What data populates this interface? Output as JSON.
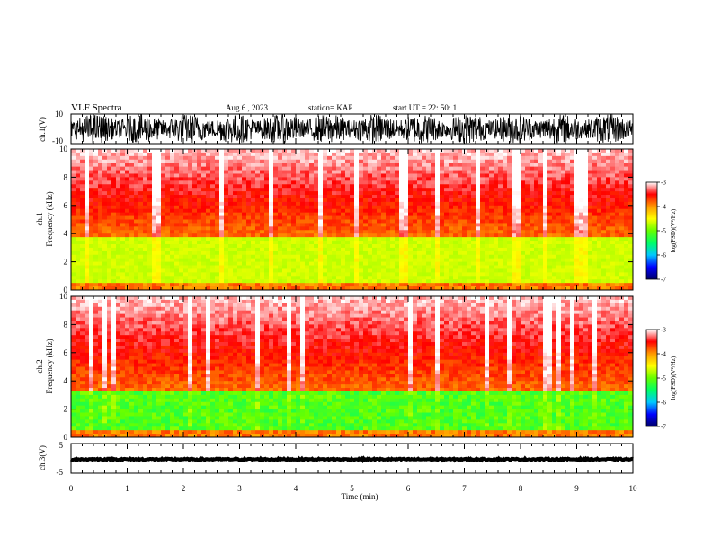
{
  "header": {
    "title": "VLF  Spectra",
    "date": "Aug.6  , 2023",
    "station": "station= KAP",
    "start": "start  UT  =   22: 50: 1"
  },
  "chart_data": {
    "type": "heatmap",
    "xlabel": "Time  (min)",
    "xlim": [
      0,
      10
    ],
    "x_ticks": [
      "0",
      "1",
      "2",
      "3",
      "4",
      "5",
      "6",
      "7",
      "8",
      "9",
      "10"
    ],
    "colorbar": {
      "label": "log(PSD)(V²/Hz)",
      "range": [
        -7,
        -3
      ],
      "ticks": [
        "-3",
        "-4",
        "-5",
        "-6",
        "-7"
      ],
      "colors": [
        "#000066",
        "#0000ff",
        "#00c8ff",
        "#00ff66",
        "#66ff00",
        "#ffff00",
        "#ff9900",
        "#ff0000",
        "#ffffff"
      ]
    },
    "panels": [
      {
        "id": "ch1-waveform",
        "ylabel": "ch.1(V)",
        "type": "line",
        "ylim": [
          -10,
          10
        ],
        "y_ticks": [
          "10",
          "-10"
        ],
        "description_level": "full-scale noisy signal"
      },
      {
        "id": "ch1-spectrogram",
        "ylabel_top": "ch.1",
        "ylabel": "Frequency  (kHz)",
        "type": "heatmap",
        "ylim": [
          0,
          10
        ],
        "y_ticks": [
          "0",
          "2",
          "4",
          "6",
          "8",
          "10"
        ],
        "low_psd_band_khz": [
          0.5,
          3.8
        ],
        "band_color": "yellow-green"
      },
      {
        "id": "ch2-spectrogram",
        "ylabel_top": "ch.2",
        "ylabel": "Frequency  (kHz)",
        "type": "heatmap",
        "ylim": [
          0,
          10
        ],
        "y_ticks": [
          "0",
          "2",
          "4",
          "6",
          "8",
          "10"
        ],
        "low_psd_band_khz": [
          0.4,
          3.3
        ],
        "band_color": "green"
      },
      {
        "id": "ch3-waveform",
        "ylabel": "ch.3(V)",
        "type": "line",
        "ylim": [
          -5,
          5
        ],
        "y_ticks": [
          "5",
          "-5"
        ],
        "level": -0.3
      }
    ]
  }
}
